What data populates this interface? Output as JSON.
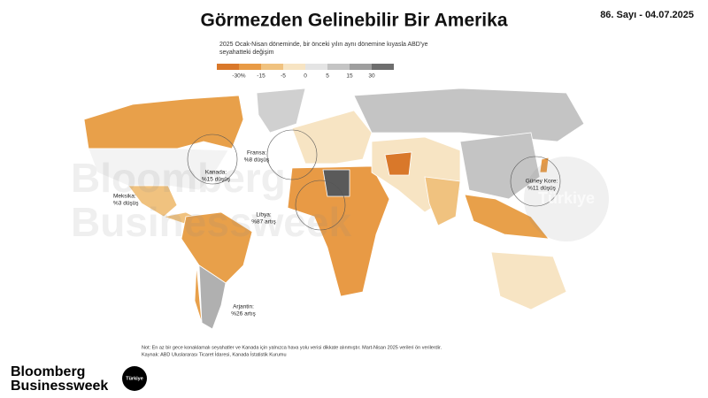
{
  "header": {
    "title": "Görmezden Gelinebilir Bir Amerika",
    "issue": "86. Sayı - 04.07.2025",
    "subtitle": [
      "2025 Ocak-Nisan döneminde, bir önceki yılın aynı dönemine kıyasla ABD'ye",
      "seyahatteki değişim"
    ]
  },
  "legend": {
    "colors": [
      "#d9782a",
      "#e89a45",
      "#f0c27f",
      "#f7e4c3",
      "#e4e4e4",
      "#c4c4c4",
      "#9e9e9e",
      "#6e6e6e"
    ],
    "labels": [
      "-30%",
      "-15",
      "-5",
      "0",
      "5",
      "15",
      "30"
    ]
  },
  "annotations": [
    {
      "label": "Kanada:",
      "text": "%15 düşüş"
    },
    {
      "label": "Meksika:",
      "text": "%3 düşüş"
    },
    {
      "label": "Fransa:",
      "text": "%8 düşüş"
    },
    {
      "label": "Libya:",
      "text": "%87 artış"
    },
    {
      "label": "Arjantin:",
      "text": "%26 artış"
    },
    {
      "label": "Güney Kore:",
      "text": "%11 düşüş"
    }
  ],
  "watermark": {
    "lines": [
      "Bloomberg",
      "Businessweek"
    ],
    "badge": "Türkiye"
  },
  "footer": {
    "note": "Not: En az bir gece konaklamalı seyahatler ve Kanada için yalnızca hava yolu verisi dikkate alınmıştır. Mart-Nisan 2025 verileri ön verilerdir.",
    "source": "Kaynak: ABD Uluslararası Ticaret İdaresi, Kanada İstatistik Kurumu"
  },
  "logo": {
    "lines": [
      "Bloomberg",
      "Businessweek"
    ],
    "badge": "Türkiye"
  }
}
